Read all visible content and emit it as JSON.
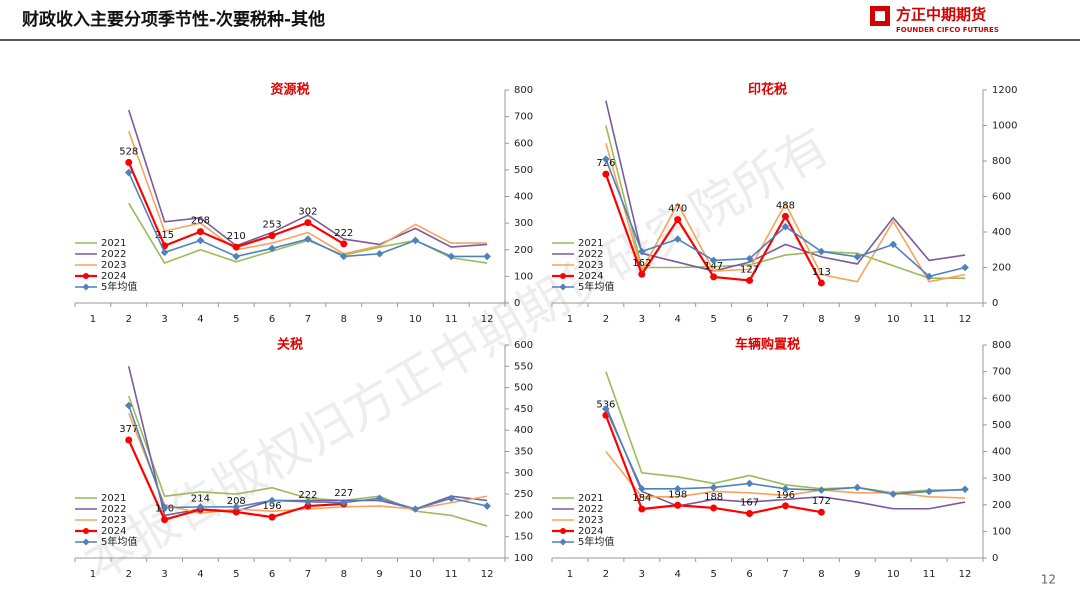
{
  "header": {
    "title": "财政收入主要分项季节性-次要税种-其他",
    "logo_cn": "方正中期期货",
    "logo_en": "FOUNDER CIFCO FUTURES"
  },
  "watermark": "本报告版权归方正中期期货研究院所有",
  "page_number": "12",
  "chart_data": [
    {
      "type": "line",
      "title": "资源税",
      "legend": "lower left",
      "categories": [
        "1",
        "2",
        "3",
        "4",
        "5",
        "6",
        "7",
        "8",
        "9",
        "10",
        "11",
        "12"
      ],
      "ylim": [
        0,
        800
      ],
      "yticks": [
        0,
        100,
        200,
        300,
        400,
        500,
        600,
        700,
        800
      ],
      "series": [
        {
          "name": "2021",
          "color": "#9bbb59",
          "values": [
            null,
            375,
            150,
            200,
            155,
            195,
            235,
            180,
            210,
            235,
            170,
            150
          ]
        },
        {
          "name": "2022",
          "color": "#7a5a9e",
          "values": [
            null,
            725,
            305,
            320,
            215,
            265,
            330,
            240,
            220,
            280,
            210,
            220
          ]
        },
        {
          "name": "2023",
          "color": "#f8a35a",
          "values": [
            null,
            645,
            270,
            300,
            200,
            225,
            265,
            185,
            215,
            295,
            225,
            225
          ]
        },
        {
          "name": "2024",
          "color": "#ff0000",
          "values": [
            null,
            528,
            215,
            268,
            210,
            253,
            302,
            222,
            null,
            null,
            null,
            null
          ]
        },
        {
          "name": "5年均值",
          "color": "#4f81bd",
          "values": [
            null,
            490,
            190,
            235,
            175,
            205,
            240,
            175,
            185,
            235,
            175,
            175
          ]
        }
      ]
    },
    {
      "type": "line",
      "title": "印花税",
      "legend": "lower left",
      "categories": [
        "1",
        "2",
        "3",
        "4",
        "5",
        "6",
        "7",
        "8",
        "9",
        "10",
        "11",
        "12"
      ],
      "ylim": [
        0,
        1200
      ],
      "yticks": [
        0,
        200,
        400,
        600,
        800,
        1000,
        1200
      ],
      "series": [
        {
          "name": "2021",
          "color": "#9bbb59",
          "values": [
            null,
            1000,
            200,
            200,
            205,
            215,
            270,
            290,
            280,
            210,
            140,
            140
          ]
        },
        {
          "name": "2022",
          "color": "#7a5a9e",
          "values": [
            null,
            1140,
            280,
            230,
            180,
            230,
            330,
            260,
            220,
            480,
            240,
            270
          ]
        },
        {
          "name": "2023",
          "color": "#f8a35a",
          "values": [
            null,
            900,
            180,
            560,
            180,
            190,
            560,
            160,
            120,
            460,
            120,
            160
          ]
        },
        {
          "name": "2024",
          "color": "#ff0000",
          "values": [
            null,
            726,
            162,
            470,
            147,
            127,
            488,
            113,
            null,
            null,
            null,
            null
          ]
        },
        {
          "name": "5年均值",
          "color": "#4f81bd",
          "values": [
            null,
            810,
            290,
            360,
            240,
            250,
            430,
            290,
            260,
            330,
            150,
            200
          ]
        }
      ]
    },
    {
      "type": "line",
      "title": "关税",
      "legend": "lower left",
      "categories": [
        "1",
        "2",
        "3",
        "4",
        "5",
        "6",
        "7",
        "8",
        "9",
        "10",
        "11",
        "12"
      ],
      "ylim": [
        100,
        600
      ],
      "yticks": [
        100,
        150,
        200,
        250,
        300,
        350,
        400,
        450,
        500,
        550,
        600
      ],
      "series": [
        {
          "name": "2021",
          "color": "#9bbb59",
          "values": [
            null,
            480,
            245,
            255,
            250,
            265,
            240,
            235,
            245,
            210,
            200,
            175
          ]
        },
        {
          "name": "2022",
          "color": "#7a5a9e",
          "values": [
            null,
            550,
            200,
            215,
            210,
            235,
            235,
            235,
            235,
            215,
            245,
            235
          ]
        },
        {
          "name": "2023",
          "color": "#f8a35a",
          "values": [
            null,
            440,
            225,
            205,
            215,
            210,
            215,
            220,
            222,
            215,
            230,
            245
          ]
        },
        {
          "name": "2024",
          "color": "#ff0000",
          "values": [
            null,
            377,
            190,
            214,
            208,
            196,
            222,
            227,
            null,
            null,
            null,
            null
          ]
        },
        {
          "name": "5年均值",
          "color": "#4f81bd",
          "values": [
            null,
            458,
            218,
            220,
            220,
            235,
            232,
            230,
            240,
            215,
            240,
            222
          ]
        }
      ]
    },
    {
      "type": "line",
      "title": "车辆购置税",
      "legend": "lower left",
      "categories": [
        "1",
        "2",
        "3",
        "4",
        "5",
        "6",
        "7",
        "8",
        "9",
        "10",
        "11",
        "12"
      ],
      "ylim": [
        0,
        800
      ],
      "yticks": [
        0,
        100,
        200,
        300,
        400,
        500,
        600,
        700,
        800
      ],
      "series": [
        {
          "name": "2021",
          "color": "#9bbb59",
          "values": [
            null,
            700,
            320,
            305,
            280,
            310,
            275,
            260,
            265,
            245,
            255,
            255
          ]
        },
        {
          "name": "2022",
          "color": "#7a5a9e",
          "values": [
            null,
            570,
            250,
            195,
            220,
            210,
            220,
            230,
            210,
            185,
            185,
            210
          ]
        },
        {
          "name": "2023",
          "color": "#f8a35a",
          "values": [
            null,
            400,
            230,
            230,
            250,
            245,
            235,
            255,
            245,
            245,
            230,
            225
          ]
        },
        {
          "name": "2024",
          "color": "#ff0000",
          "values": [
            null,
            536,
            184,
            198,
            188,
            167,
            196,
            172,
            null,
            null,
            null,
            null
          ]
        },
        {
          "name": "5年均值",
          "color": "#4f81bd",
          "values": [
            null,
            560,
            260,
            260,
            265,
            280,
            260,
            255,
            265,
            240,
            250,
            258
          ]
        }
      ]
    }
  ]
}
